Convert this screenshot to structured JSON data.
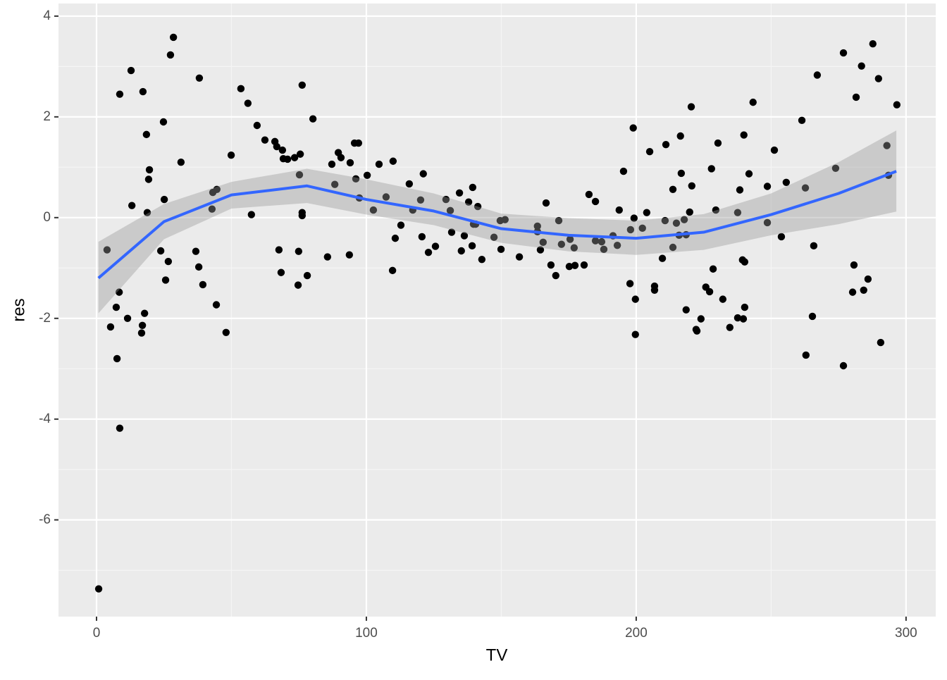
{
  "chart_data": {
    "type": "scatter",
    "x_label": "TV",
    "y_label": "res",
    "xlim": [
      -14.1,
      311.0
    ],
    "ylim": [
      -7.92,
      4.25
    ],
    "xticks": [
      0,
      100,
      200,
      300
    ],
    "yticks": [
      4,
      2,
      0,
      -2,
      -4,
      -6
    ],
    "grid": true,
    "color": "#000000",
    "x": [
      0.8,
      3.9,
      5.2,
      7.3,
      7.6,
      8.4,
      8.6,
      8.6,
      11.5,
      12.8,
      13.1,
      16.7,
      17.0,
      17.2,
      17.8,
      18.5,
      18.8,
      19.3,
      19.6,
      23.8,
      24.8,
      25.1,
      25.6,
      26.6,
      27.4,
      28.5,
      31.3,
      36.8,
      37.9,
      38.1,
      39.4,
      42.8,
      43.1,
      44.6,
      44.4,
      48.0,
      49.9,
      53.5,
      56.1,
      57.4,
      59.5,
      62.4,
      66.1,
      66.8,
      67.6,
      68.4,
      68.9,
      69.2,
      70.8,
      73.4,
      74.7,
      74.9,
      75.2,
      75.5,
      76.2,
      76.2,
      76.2,
      78.1,
      80.2,
      85.6,
      87.2,
      88.3,
      89.6,
      90.6,
      93.7,
      94.0,
      95.6,
      96.1,
      97.1,
      97.4,
      100.3,
      102.6,
      104.7,
      107.3,
      109.7,
      109.9,
      110.7,
      112.8,
      115.9,
      117.2,
      120.1,
      120.6,
      121.1,
      123.0,
      125.6,
      129.5,
      131.1,
      131.6,
      134.5,
      135.2,
      136.3,
      137.9,
      139.2,
      139.4,
      139.7,
      140.5,
      141.3,
      142.8,
      147.3,
      149.6,
      149.9,
      151.4,
      156.7,
      163.4,
      163.4,
      164.5,
      165.5,
      166.6,
      168.4,
      170.2,
      171.3,
      172.3,
      175.2,
      175.5,
      177.0,
      177.3,
      180.7,
      182.5,
      184.9,
      184.9,
      187.2,
      188.0,
      191.4,
      193.0,
      193.7,
      195.3,
      197.7,
      197.9,
      198.9,
      199.2,
      199.7,
      199.7,
      202.3,
      203.9,
      205.0,
      206.8,
      206.8,
      209.7,
      210.7,
      211.0,
      213.6,
      213.6,
      214.9,
      215.9,
      216.4,
      216.7,
      217.8,
      218.5,
      218.5,
      219.8,
      220.4,
      220.6,
      222.2,
      222.5,
      224.0,
      225.8,
      227.2,
      227.9,
      228.5,
      229.5,
      230.3,
      232.1,
      234.7,
      237.6,
      237.6,
      238.4,
      239.4,
      239.7,
      239.9,
      240.2,
      240.2,
      241.8,
      243.3,
      248.6,
      248.6,
      251.2,
      253.8,
      255.6,
      261.4,
      262.7,
      262.9,
      265.3,
      265.8,
      267.1,
      273.9,
      276.8,
      276.8,
      280.2,
      280.7,
      281.5,
      283.5,
      284.3,
      285.9,
      287.7,
      289.8,
      290.6,
      292.9,
      293.5,
      296.6
    ],
    "values": [
      -7.37,
      -0.64,
      -2.17,
      -1.78,
      -2.8,
      -1.48,
      2.45,
      -4.18,
      -2.0,
      2.92,
      0.24,
      -2.29,
      -2.14,
      2.5,
      -1.9,
      1.65,
      0.1,
      0.76,
      0.95,
      -0.66,
      1.9,
      0.36,
      -1.24,
      -0.87,
      3.23,
      3.58,
      1.1,
      -0.67,
      -0.98,
      2.77,
      -1.33,
      0.17,
      0.5,
      0.56,
      -1.73,
      -2.28,
      1.24,
      2.56,
      2.27,
      0.06,
      1.83,
      1.54,
      1.51,
      1.41,
      -0.64,
      -1.09,
      1.34,
      1.17,
      1.16,
      1.19,
      -1.34,
      -0.67,
      0.85,
      1.26,
      2.63,
      0.1,
      0.04,
      -1.15,
      1.96,
      -0.78,
      1.06,
      0.66,
      1.29,
      1.19,
      -0.74,
      1.09,
      1.48,
      0.77,
      1.48,
      0.39,
      0.84,
      0.15,
      1.06,
      0.41,
      -1.05,
      1.12,
      -0.41,
      -0.15,
      0.67,
      0.15,
      0.35,
      -0.38,
      0.87,
      -0.69,
      -0.57,
      0.36,
      0.14,
      -0.29,
      0.49,
      -0.66,
      -0.36,
      0.31,
      -0.56,
      0.6,
      -0.13,
      -0.13,
      0.22,
      -0.83,
      -0.39,
      -0.06,
      -0.63,
      -0.04,
      -0.78,
      -0.17,
      -0.28,
      -0.64,
      -0.49,
      0.29,
      -0.94,
      -1.15,
      -0.06,
      -0.53,
      -0.97,
      -0.43,
      -0.6,
      -0.95,
      -0.94,
      0.46,
      0.32,
      -0.46,
      -0.48,
      -0.63,
      -0.36,
      -0.55,
      0.15,
      0.92,
      -1.31,
      -0.24,
      1.78,
      -0.01,
      -1.62,
      -2.32,
      -0.21,
      0.1,
      1.31,
      -1.36,
      -1.44,
      -0.81,
      -0.06,
      1.45,
      0.56,
      -0.59,
      -0.11,
      -0.35,
      1.62,
      0.88,
      -0.04,
      -0.34,
      -1.83,
      0.11,
      2.2,
      0.63,
      -2.22,
      -2.25,
      -2.01,
      -1.38,
      -1.47,
      0.97,
      -1.02,
      0.15,
      1.48,
      -1.62,
      -2.18,
      -1.99,
      0.1,
      0.55,
      -0.84,
      -2.01,
      1.64,
      -0.88,
      -1.78,
      0.87,
      2.29,
      -0.1,
      0.62,
      1.34,
      -0.38,
      0.7,
      1.93,
      0.59,
      -2.73,
      -1.96,
      -0.56,
      2.83,
      0.98,
      3.27,
      -2.94,
      -1.48,
      -0.94,
      2.39,
      3.01,
      -1.44,
      -1.22,
      3.45,
      2.76,
      -2.48,
      1.43,
      0.84,
      2.24
    ],
    "smooth": {
      "color": "#3366ff",
      "fill": "#999999",
      "x": [
        0.7,
        25,
        50,
        78,
        100,
        125,
        150,
        175,
        200,
        225,
        250,
        275,
        296.4
      ],
      "y": [
        -1.2,
        -0.08,
        0.45,
        0.63,
        0.36,
        0.13,
        -0.22,
        -0.35,
        -0.41,
        -0.29,
        0.06,
        0.48,
        0.92
      ],
      "upper": [
        -0.48,
        0.27,
        0.71,
        0.97,
        0.76,
        0.48,
        0.08,
        -0.01,
        -0.06,
        0.07,
        0.48,
        1.1,
        1.73
      ],
      "lower": [
        -1.9,
        -0.43,
        0.18,
        0.29,
        0.06,
        -0.15,
        -0.5,
        -0.67,
        -0.74,
        -0.64,
        -0.35,
        -0.13,
        0.12
      ]
    }
  }
}
